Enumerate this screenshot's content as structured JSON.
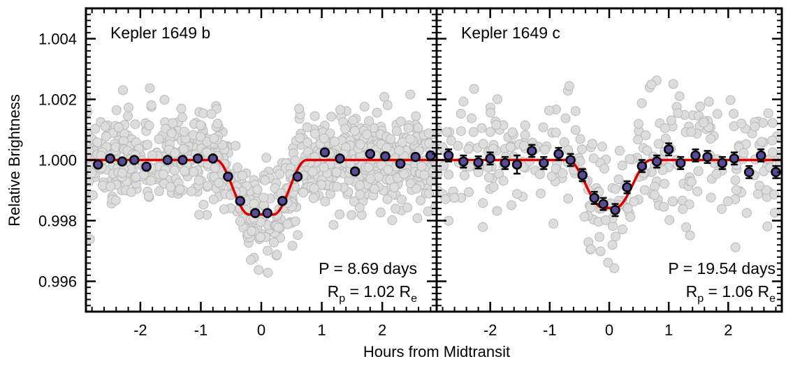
{
  "chart_data": {
    "type": "scatter",
    "ylabel": "Relative Brightness",
    "xlabel": "Hours from Midtransit",
    "ylim": [
      0.995,
      1.005
    ],
    "yticks": [
      0.996,
      0.998,
      1.0,
      1.002,
      1.004
    ],
    "ytick_labels": [
      "0.996",
      "0.998",
      "1.000",
      "1.002",
      "1.004"
    ],
    "grid": false,
    "colors": {
      "raw_points": "#cccccc",
      "binned_points": "#5b4a9a",
      "model": "#e00000"
    },
    "panels": [
      {
        "title": "Kepler 1649 b",
        "period_label": "P = 8.69 days",
        "radius_label_main": "R",
        "radius_label_sub": "p",
        "radius_label_mid": " = 1.02 R",
        "radius_label_sub2": "e",
        "xlim": [
          -2.9,
          2.9
        ],
        "xticks": [
          -2,
          -1,
          0,
          1,
          2
        ],
        "xtick_labels": [
          "-2",
          "-1",
          "0",
          "1",
          "2"
        ],
        "model": {
          "depth": 0.0018,
          "t_full": 0.2,
          "t_total": 0.75
        },
        "binned": [
          {
            "x": -2.7,
            "y": 0.99985,
            "err": 8e-05
          },
          {
            "x": -2.5,
            "y": 1.00005,
            "err": 8e-05
          },
          {
            "x": -2.3,
            "y": 0.99995,
            "err": 8e-05
          },
          {
            "x": -2.1,
            "y": 1.0,
            "err": 8e-05
          },
          {
            "x": -1.9,
            "y": 0.99978,
            "err": 8e-05
          },
          {
            "x": -1.55,
            "y": 1.0,
            "err": 8e-05
          },
          {
            "x": -1.3,
            "y": 1.0,
            "err": 8e-05
          },
          {
            "x": -1.05,
            "y": 1.00005,
            "err": 8e-05
          },
          {
            "x": -0.8,
            "y": 1.00005,
            "err": 8e-05
          },
          {
            "x": -0.55,
            "y": 0.99945,
            "err": 8e-05
          },
          {
            "x": -0.35,
            "y": 0.99865,
            "err": 8e-05
          },
          {
            "x": -0.1,
            "y": 0.99825,
            "err": 8e-05
          },
          {
            "x": 0.1,
            "y": 0.99825,
            "err": 8e-05
          },
          {
            "x": 0.35,
            "y": 0.99865,
            "err": 8e-05
          },
          {
            "x": 0.6,
            "y": 0.99945,
            "err": 8e-05
          },
          {
            "x": 1.05,
            "y": 1.00025,
            "err": 8e-05
          },
          {
            "x": 1.3,
            "y": 1.00005,
            "err": 8e-05
          },
          {
            "x": 1.55,
            "y": 0.99962,
            "err": 8e-05
          },
          {
            "x": 1.8,
            "y": 1.0002,
            "err": 8e-05
          },
          {
            "x": 2.05,
            "y": 1.00012,
            "err": 8e-05
          },
          {
            "x": 2.3,
            "y": 0.99988,
            "err": 8e-05
          },
          {
            "x": 2.55,
            "y": 1.0001,
            "err": 8e-05
          },
          {
            "x": 2.8,
            "y": 1.00015,
            "err": 8e-05
          }
        ],
        "raw_count": 900,
        "raw_scatter": 0.00075
      },
      {
        "title": "Kepler 1649 c",
        "period_label": "P = 19.54 days",
        "radius_label_main": "R",
        "radius_label_sub": "p",
        "radius_label_mid": " = 1.06 R",
        "radius_label_sub2": "e",
        "xlim": [
          -2.9,
          2.9
        ],
        "xticks": [
          -2,
          -1,
          0,
          1,
          2
        ],
        "xtick_labels": [
          "-2",
          "-1",
          "0",
          "1",
          "2"
        ],
        "model": {
          "depth": 0.00158,
          "t_full": 0.1,
          "t_total": 0.7
        },
        "binned": [
          {
            "x": -2.7,
            "y": 1.00015,
            "err": 0.0002
          },
          {
            "x": -2.45,
            "y": 0.99995,
            "err": 0.0002
          },
          {
            "x": -2.2,
            "y": 0.99992,
            "err": 0.0002
          },
          {
            "x": -2.0,
            "y": 1.00005,
            "err": 0.0002
          },
          {
            "x": -1.75,
            "y": 0.9999,
            "err": 0.0002
          },
          {
            "x": -1.55,
            "y": 0.99985,
            "err": 0.0003
          },
          {
            "x": -1.3,
            "y": 1.0003,
            "err": 0.0002
          },
          {
            "x": -1.1,
            "y": 0.9999,
            "err": 0.0002
          },
          {
            "x": -0.85,
            "y": 1.0002,
            "err": 0.0002
          },
          {
            "x": -0.65,
            "y": 1.0,
            "err": 0.0002
          },
          {
            "x": -0.45,
            "y": 0.9995,
            "err": 0.0002
          },
          {
            "x": -0.25,
            "y": 0.99875,
            "err": 0.0002
          },
          {
            "x": -0.1,
            "y": 0.99855,
            "err": 0.0002
          },
          {
            "x": 0.1,
            "y": 0.99835,
            "err": 0.0002
          },
          {
            "x": 0.3,
            "y": 0.9991,
            "err": 0.0002
          },
          {
            "x": 0.55,
            "y": 0.9998,
            "err": 0.0002
          },
          {
            "x": 0.8,
            "y": 0.99995,
            "err": 0.0002
          },
          {
            "x": 1.0,
            "y": 1.00035,
            "err": 0.0002
          },
          {
            "x": 1.2,
            "y": 0.9999,
            "err": 0.0002
          },
          {
            "x": 1.45,
            "y": 1.00015,
            "err": 0.0002
          },
          {
            "x": 1.65,
            "y": 1.0001,
            "err": 0.0002
          },
          {
            "x": 1.9,
            "y": 0.9999,
            "err": 0.0002
          },
          {
            "x": 2.1,
            "y": 1.00005,
            "err": 0.0002
          },
          {
            "x": 2.35,
            "y": 0.9996,
            "err": 0.0002
          },
          {
            "x": 2.55,
            "y": 1.00015,
            "err": 0.0002
          },
          {
            "x": 2.8,
            "y": 0.9996,
            "err": 0.0002
          }
        ],
        "raw_count": 320,
        "raw_scatter": 0.0011
      }
    ]
  }
}
